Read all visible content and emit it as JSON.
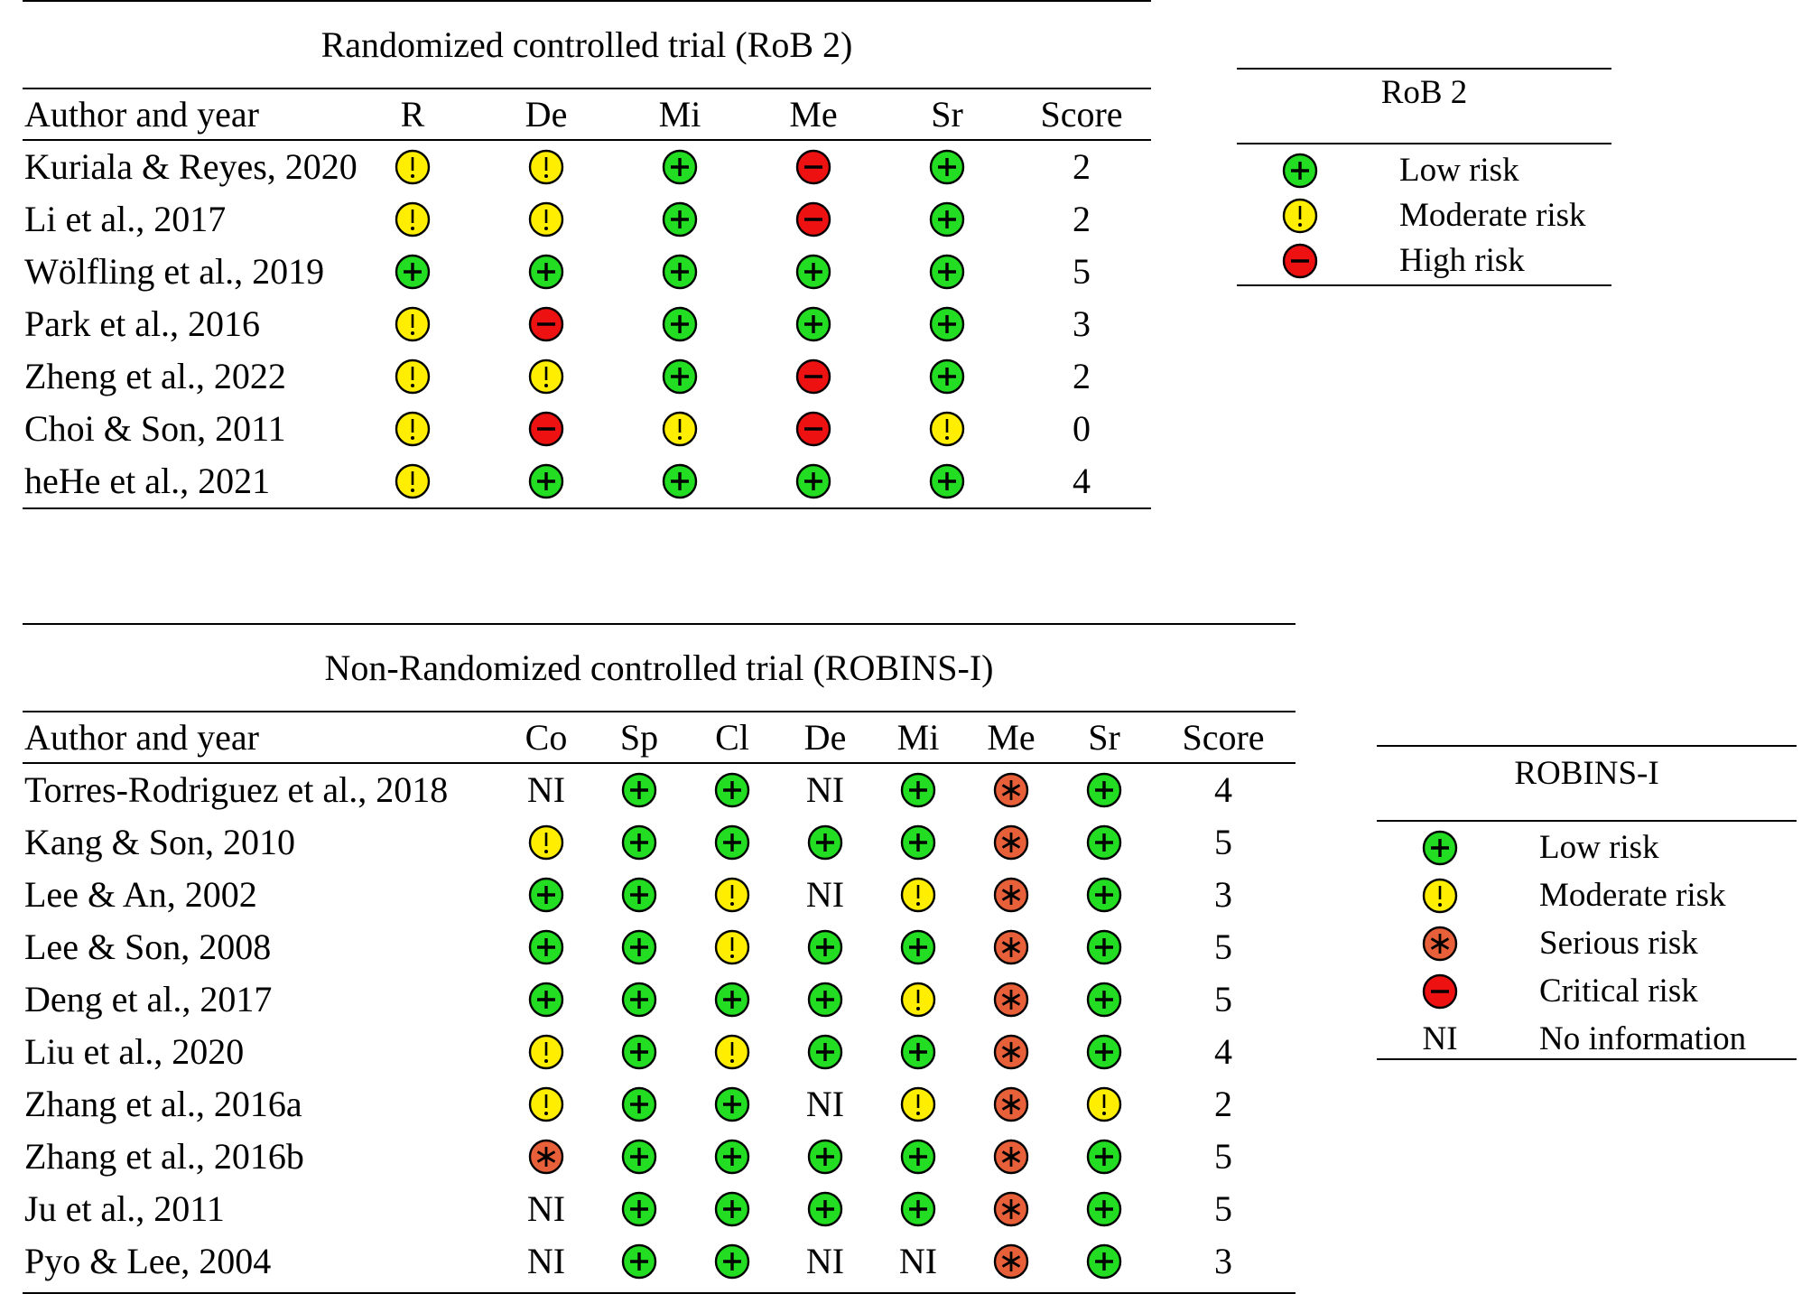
{
  "colors": {
    "low": "#22dd22",
    "moderate": "#ffee00",
    "high": "#ee1111",
    "serious": "#e8603a",
    "critical": "#ee1111"
  },
  "rob2_table": {
    "title": "Randomized controlled trial (RoB 2)",
    "headers": [
      "Author and year",
      "R",
      "De",
      "Mi",
      "Me",
      "Sr",
      "Score"
    ],
    "rows": [
      {
        "author": "Kuriala & Reyes, 2020",
        "ratings": [
          "moderate",
          "moderate",
          "low",
          "high",
          "low"
        ],
        "score": "2"
      },
      {
        "author": "Li et al., 2017",
        "ratings": [
          "moderate",
          "moderate",
          "low",
          "high",
          "low"
        ],
        "score": "2"
      },
      {
        "author": "Wölfling et al., 2019",
        "ratings": [
          "low",
          "low",
          "low",
          "low",
          "low"
        ],
        "score": "5"
      },
      {
        "author": "Park et al., 2016",
        "ratings": [
          "moderate",
          "high",
          "low",
          "low",
          "low"
        ],
        "score": "3"
      },
      {
        "author": "Zheng et al., 2022",
        "ratings": [
          "moderate",
          "moderate",
          "low",
          "high",
          "low"
        ],
        "score": "2"
      },
      {
        "author": "Choi & Son, 2011",
        "ratings": [
          "moderate",
          "high",
          "moderate",
          "high",
          "moderate"
        ],
        "score": "0"
      },
      {
        "author": "heHe et al., 2021",
        "ratings": [
          "moderate",
          "low",
          "low",
          "low",
          "low"
        ],
        "score": "4"
      }
    ]
  },
  "rob2_legend": {
    "title": "RoB 2",
    "items": [
      {
        "symbol": "low",
        "label": "Low risk"
      },
      {
        "symbol": "moderate",
        "label": "Moderate risk"
      },
      {
        "symbol": "high",
        "label": "High risk"
      }
    ]
  },
  "robins_table": {
    "title": "Non-Randomized controlled trial (ROBINS-I)",
    "headers": [
      "Author and year",
      "Co",
      "Sp",
      "Cl",
      "De",
      "Mi",
      "Me",
      "Sr",
      "Score"
    ],
    "rows": [
      {
        "author": "Torres-Rodriguez et al., 2018",
        "ratings": [
          "NI",
          "low",
          "low",
          "NI",
          "low",
          "serious",
          "low"
        ],
        "score": "4"
      },
      {
        "author": "Kang & Son, 2010",
        "ratings": [
          "moderate",
          "low",
          "low",
          "low",
          "low",
          "serious",
          "low"
        ],
        "score": "5"
      },
      {
        "author": "Lee & An, 2002",
        "ratings": [
          "low",
          "low",
          "moderate",
          "NI",
          "moderate",
          "serious",
          "low"
        ],
        "score": "3"
      },
      {
        "author": "Lee & Son, 2008",
        "ratings": [
          "low",
          "low",
          "moderate",
          "low",
          "low",
          "serious",
          "low"
        ],
        "score": "5"
      },
      {
        "author": "Deng et al., 2017",
        "ratings": [
          "low",
          "low",
          "low",
          "low",
          "moderate",
          "serious",
          "low"
        ],
        "score": "5"
      },
      {
        "author": "Liu et al., 2020",
        "ratings": [
          "moderate",
          "low",
          "moderate",
          "low",
          "low",
          "serious",
          "low"
        ],
        "score": "4"
      },
      {
        "author": "Zhang et al., 2016a",
        "ratings": [
          "moderate",
          "low",
          "low",
          "NI",
          "moderate",
          "serious",
          "moderate"
        ],
        "score": "2"
      },
      {
        "author": "Zhang et al., 2016b",
        "ratings": [
          "serious",
          "low",
          "low",
          "low",
          "low",
          "serious",
          "low"
        ],
        "score": "5"
      },
      {
        "author": "Ju et al., 2011",
        "ratings": [
          "NI",
          "low",
          "low",
          "low",
          "low",
          "serious",
          "low"
        ],
        "score": "5"
      },
      {
        "author": "Pyo & Lee, 2004",
        "ratings": [
          "NI",
          "low",
          "low",
          "NI",
          "NI",
          "serious",
          "low"
        ],
        "score": "3"
      }
    ]
  },
  "robins_legend": {
    "title": "ROBINS-I",
    "items": [
      {
        "symbol": "low",
        "label": "Low risk"
      },
      {
        "symbol": "moderate",
        "label": "Moderate risk"
      },
      {
        "symbol": "serious",
        "label": "Serious risk"
      },
      {
        "symbol": "critical",
        "label": "Critical risk"
      },
      {
        "symbol": "NI",
        "label": "No information"
      }
    ]
  }
}
